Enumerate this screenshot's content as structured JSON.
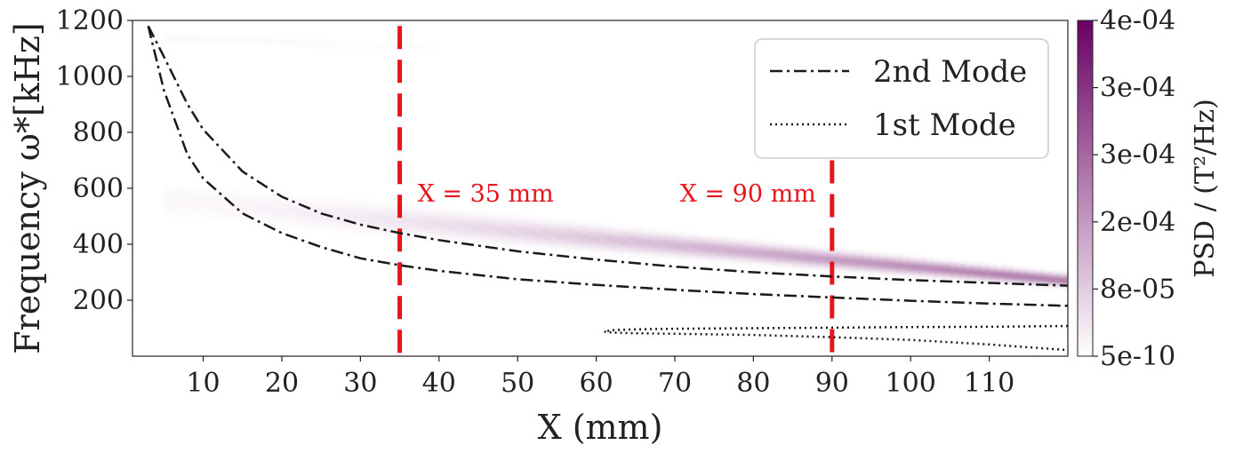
{
  "chart_data": {
    "type": "heatmap",
    "title": "",
    "xlabel": "X (mm)",
    "ylabel": "Frequency ω*[kHz]",
    "xlim": [
      1,
      120
    ],
    "ylim": [
      0,
      1200
    ],
    "x_ticks": [
      10,
      20,
      30,
      40,
      50,
      60,
      70,
      80,
      90,
      100,
      110
    ],
    "y_ticks": [
      200,
      400,
      600,
      800,
      1000,
      1200
    ],
    "colorbar": {
      "label": "PSD / (T²/Hz)",
      "ticks": [
        "5e-10",
        "8e-05",
        "2e-04",
        "3e-04",
        "3e-04",
        "4e-04"
      ],
      "color_low": "#ffffff",
      "color_high": "#6a0064"
    },
    "heatmap_bands": [
      {
        "x_start": 5,
        "x_end": 120,
        "center_start": 560,
        "center_end": 270,
        "width_start": 140,
        "width_end": 45,
        "intensity_start": 0.04,
        "intensity_end": 0.95
      },
      {
        "x_start": 5,
        "x_end": 40,
        "center_start": 1140,
        "center_end": 1100,
        "width_start": 25,
        "width_end": 25,
        "intensity_start": 0.05,
        "intensity_end": 0.02
      }
    ],
    "series": [
      {
        "name": "2nd Mode",
        "style": "dashdot",
        "color": "#1a1a1a",
        "x": [
          3,
          5,
          8,
          10,
          15,
          20,
          25,
          30,
          35,
          40,
          50,
          60,
          70,
          80,
          90,
          100,
          110,
          120
        ],
        "y": [
          1180,
          1070,
          900,
          810,
          660,
          570,
          510,
          470,
          440,
          415,
          375,
          345,
          320,
          300,
          285,
          272,
          262,
          252
        ]
      },
      {
        "series_ref": "2nd Mode",
        "style": "dashdot",
        "color": "#1a1a1a",
        "x": [
          3,
          5,
          8,
          10,
          15,
          20,
          25,
          30,
          35,
          40,
          50,
          60,
          70,
          80,
          90,
          100,
          110,
          120
        ],
        "y": [
          1180,
          950,
          720,
          635,
          510,
          440,
          390,
          350,
          325,
          305,
          275,
          255,
          237,
          222,
          210,
          198,
          188,
          180
        ]
      },
      {
        "name": "1st Mode",
        "style": "dotted",
        "color": "#1a1a1a",
        "x": [
          120,
          110,
          100,
          90,
          80,
          70,
          65,
          62,
          61,
          62,
          65,
          70,
          80,
          90,
          100,
          110,
          120
        ],
        "y": [
          108,
          105,
          104,
          102,
          100,
          98,
          96,
          93,
          88,
          84,
          82,
          80,
          76,
          68,
          58,
          42,
          22
        ]
      }
    ],
    "vlines": [
      {
        "x": 35,
        "label": "X = 35 mm",
        "color": "#e8141b",
        "y_top": 1180
      },
      {
        "x": 90,
        "label": "X = 90 mm",
        "color": "#e8141b",
        "y_top": 700
      }
    ],
    "legend": {
      "position": "top-right",
      "entries": [
        "2nd Mode",
        "1st Mode"
      ]
    },
    "grid": false
  }
}
